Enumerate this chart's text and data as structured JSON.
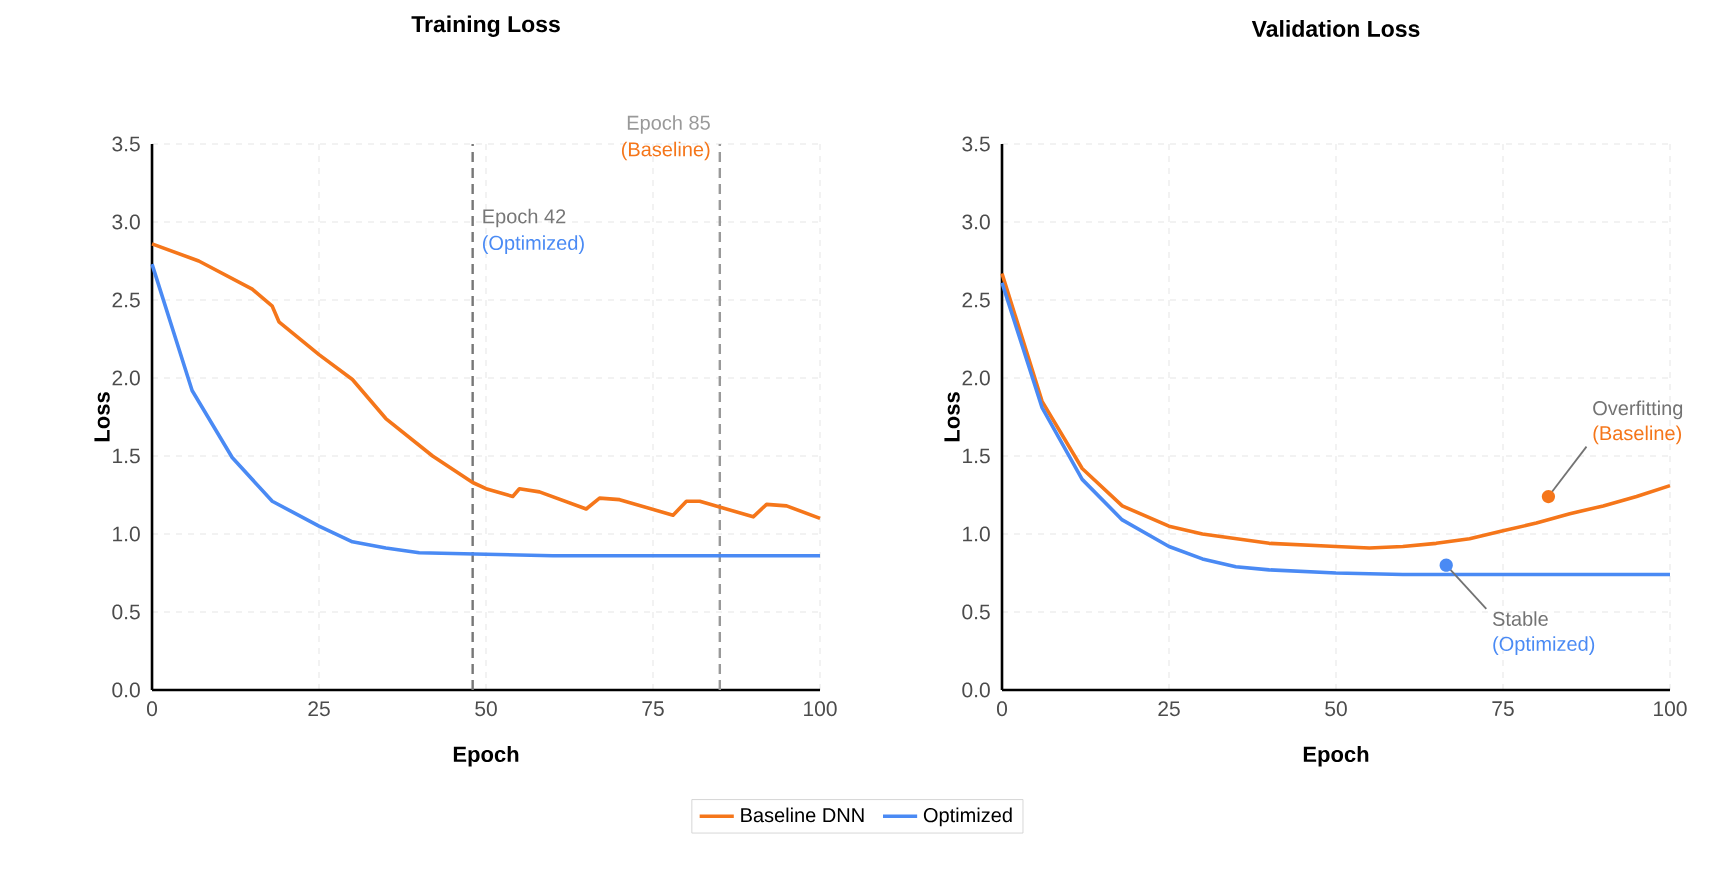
{
  "chart_data": [
    {
      "type": "line",
      "title": "Training Loss",
      "xlabel": "Epoch",
      "ylabel": "Loss",
      "xlim": [
        0,
        100
      ],
      "xticks": [
        0,
        25,
        50,
        75,
        100
      ],
      "ylim": [
        0,
        3.5
      ],
      "yticks": [
        {
          "value": 0,
          "label": "0.0"
        },
        {
          "value": 0.5,
          "label": "0.5"
        },
        {
          "value": 1,
          "label": "1.0"
        },
        {
          "value": 1.5,
          "label": "1.5"
        },
        {
          "value": 2,
          "label": "2.0"
        },
        {
          "value": 2.5,
          "label": "2.5"
        },
        {
          "value": 3,
          "label": "3.0"
        },
        {
          "value": 3.5,
          "label": "3.5"
        }
      ],
      "grid": true,
      "legend": "bottom",
      "marker": "none",
      "line_style": "solid",
      "series": [
        {
          "name": "Baseline DNN",
          "color": "#f5761a",
          "x": [
            0,
            7,
            15,
            18,
            19,
            25,
            30,
            35,
            42,
            48,
            50,
            54,
            55,
            58,
            65,
            67,
            70,
            78,
            80,
            82,
            90,
            92,
            95,
            100
          ],
          "values": [
            2.86,
            2.75,
            2.57,
            2.46,
            2.36,
            2.15,
            1.99,
            1.74,
            1.5,
            1.33,
            1.29,
            1.24,
            1.29,
            1.27,
            1.16,
            1.23,
            1.22,
            1.12,
            1.21,
            1.21,
            1.11,
            1.19,
            1.18,
            1.1
          ]
        },
        {
          "name": "Optimized",
          "color": "#4a8af4",
          "x": [
            0,
            6,
            12,
            18,
            25,
            30,
            35,
            40,
            50,
            60,
            80,
            100
          ],
          "values": [
            2.73,
            1.92,
            1.49,
            1.21,
            1.05,
            0.95,
            0.91,
            0.88,
            0.87,
            0.86,
            0.86,
            0.86
          ]
        }
      ],
      "ref_lines": [
        {
          "axis": "x",
          "value": 48,
          "label": "Epoch 42",
          "color": "#777777",
          "line_style": "dashed"
        },
        {
          "axis": "x",
          "value": 85,
          "label": "Epoch 85",
          "color": "#999999",
          "line_style": "dashed"
        }
      ],
      "annotations": [
        {
          "text": "(Optimized)",
          "x": 48
        },
        {
          "text": "(Baseline)",
          "x": 85
        }
      ]
    },
    {
      "type": "line",
      "title": "Validation Loss",
      "xlabel": "Epoch",
      "ylabel": "Loss",
      "xlim": [
        0,
        100
      ],
      "xticks": [
        0,
        25,
        50,
        75,
        100
      ],
      "ylim": [
        0,
        3.5
      ],
      "yticks": [
        {
          "value": 0,
          "label": "0.0"
        },
        {
          "value": 0.5,
          "label": "0.5"
        },
        {
          "value": 1,
          "label": "1.0"
        },
        {
          "value": 1.5,
          "label": "1.5"
        },
        {
          "value": 2,
          "label": "2.0"
        },
        {
          "value": 2.5,
          "label": "2.5"
        },
        {
          "value": 3,
          "label": "3.0"
        },
        {
          "value": 3.5,
          "label": "3.5"
        }
      ],
      "grid": true,
      "marker": "none",
      "line_style": "solid",
      "series": [
        {
          "color": "#f5761a",
          "x": [
            0,
            6,
            12,
            18,
            25,
            30,
            40,
            50,
            55,
            60,
            65,
            70,
            75,
            80,
            85,
            90,
            95,
            100
          ],
          "values": [
            2.67,
            1.85,
            1.42,
            1.18,
            1.05,
            1.0,
            0.94,
            0.92,
            0.91,
            0.92,
            0.94,
            0.97,
            1.02,
            1.07,
            1.13,
            1.18,
            1.24,
            1.31
          ]
        },
        {
          "color": "#4a8af4",
          "x": [
            0,
            6,
            12,
            18,
            25,
            30,
            35,
            40,
            50,
            60,
            100
          ],
          "values": [
            2.61,
            1.81,
            1.35,
            1.09,
            0.92,
            0.84,
            0.79,
            0.77,
            0.75,
            0.74,
            0.74
          ]
        }
      ],
      "annotations": [
        "Overfitting",
        "(Baseline)",
        "Stable",
        "(Optimized)"
      ]
    }
  ]
}
